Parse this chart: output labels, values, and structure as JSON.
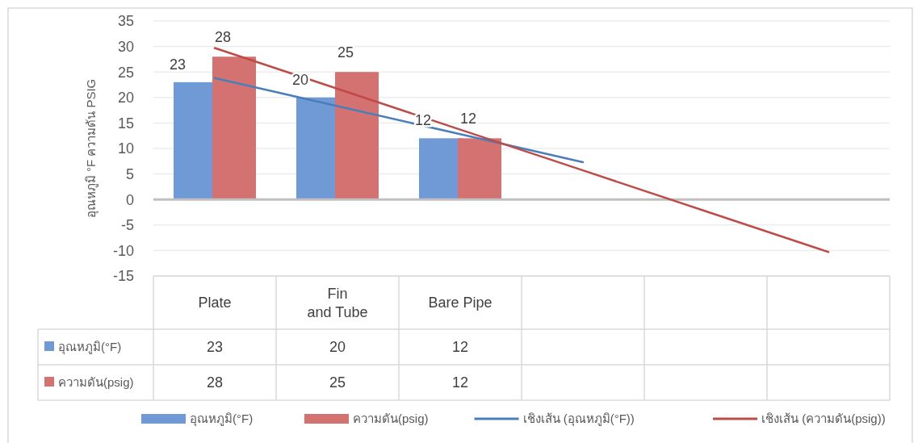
{
  "chart_data": {
    "type": "bar",
    "ylabel": "อุณหภูมิ °F ความดัน PSIG",
    "categories": [
      "Plate",
      "Fin  and Tube",
      "Bare Pipe",
      null,
      null,
      null
    ],
    "series": [
      {
        "name": "อุณหภูมิ(°F)",
        "color": "#6f9ad6",
        "values": [
          23,
          20,
          12,
          null,
          null,
          null
        ],
        "value_labels": [
          "23",
          "20",
          "12",
          null,
          null,
          null
        ]
      },
      {
        "name": "ความดัน(psig)",
        "color": "#d47272",
        "values": [
          28,
          25,
          12,
          null,
          null,
          null
        ],
        "value_labels": [
          "28",
          "25",
          "12",
          null,
          null,
          null
        ]
      },
      {
        "name": "เชิงเส้น (อุณหภูมิ(°F))",
        "type": "line",
        "color": "#4a7ebb",
        "values": [
          23.8,
          18.3,
          12.8,
          7.3,
          null,
          null
        ]
      },
      {
        "name": "เชิงเส้น (ความดัน(psig))",
        "type": "line",
        "color": "#be4b48",
        "values": [
          29.7,
          21.7,
          13.7,
          5.7,
          -2.3,
          -10.3
        ]
      }
    ],
    "ylim": [
      -15,
      35
    ],
    "yticks": [
      -15,
      -10,
      -5,
      0,
      5,
      10,
      15,
      20,
      25,
      30,
      35
    ],
    "grid": "y",
    "legend": "bottom",
    "marker": "none",
    "line_style": "solid"
  }
}
